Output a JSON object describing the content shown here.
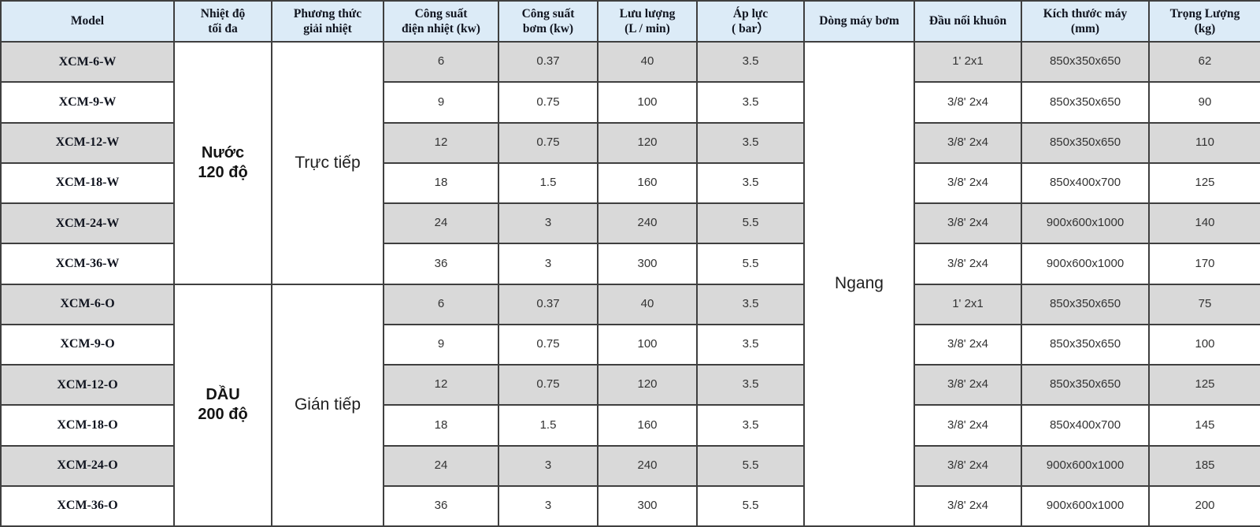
{
  "colors": {
    "header_bg": "#DCEBF7",
    "row_shade": "#D9D9D9",
    "border": "#3F3F3F"
  },
  "table": {
    "headers": [
      "Model",
      "Nhiệt độ\ntối đa",
      "Phương thức\ngiải nhiệt",
      "Công suất\nđiện nhiệt (kw)",
      "Công suất\nbơm (kw)",
      "Lưu lượng\n(L / min)",
      "Áp lực\n( bar）",
      "Dòng máy bơm",
      "Đầu nối khuôn",
      "Kích thước máy\n(mm)",
      "Trọng Lượng\n(kg)"
    ],
    "merged": {
      "temp_water": "Nước\n120 độ",
      "method_water": "Trực tiếp",
      "temp_oil": "DẦU\n200 độ",
      "method_oil": "Gián tiếp",
      "pump_type": "Ngang"
    },
    "rows": [
      {
        "model": "XCM-6-W",
        "heat_kw": "6",
        "pump_kw": "0.37",
        "flow": "40",
        "pressure": "3.5",
        "mold_connector": "1' 2x1",
        "size": "850x350x650",
        "weight": "62"
      },
      {
        "model": "XCM-9-W",
        "heat_kw": "9",
        "pump_kw": "0.75",
        "flow": "100",
        "pressure": "3.5",
        "mold_connector": "3/8' 2x4",
        "size": "850x350x650",
        "weight": "90"
      },
      {
        "model": "XCM-12-W",
        "heat_kw": "12",
        "pump_kw": "0.75",
        "flow": "120",
        "pressure": "3.5",
        "mold_connector": "3/8' 2x4",
        "size": "850x350x650",
        "weight": "110"
      },
      {
        "model": "XCM-18-W",
        "heat_kw": "18",
        "pump_kw": "1.5",
        "flow": "160",
        "pressure": "3.5",
        "mold_connector": "3/8' 2x4",
        "size": "850x400x700",
        "weight": "125"
      },
      {
        "model": "XCM-24-W",
        "heat_kw": "24",
        "pump_kw": "3",
        "flow": "240",
        "pressure": "5.5",
        "mold_connector": "3/8' 2x4",
        "size": "900x600x1000",
        "weight": "140"
      },
      {
        "model": "XCM-36-W",
        "heat_kw": "36",
        "pump_kw": "3",
        "flow": "300",
        "pressure": "5.5",
        "mold_connector": "3/8' 2x4",
        "size": "900x600x1000",
        "weight": "170"
      },
      {
        "model": "XCM-6-O",
        "heat_kw": "6",
        "pump_kw": "0.37",
        "flow": "40",
        "pressure": "3.5",
        "mold_connector": "1' 2x1",
        "size": "850x350x650",
        "weight": "75"
      },
      {
        "model": "XCM-9-O",
        "heat_kw": "9",
        "pump_kw": "0.75",
        "flow": "100",
        "pressure": "3.5",
        "mold_connector": "3/8' 2x4",
        "size": "850x350x650",
        "weight": "100"
      },
      {
        "model": "XCM-12-O",
        "heat_kw": "12",
        "pump_kw": "0.75",
        "flow": "120",
        "pressure": "3.5",
        "mold_connector": "3/8' 2x4",
        "size": "850x350x650",
        "weight": "125"
      },
      {
        "model": "XCM-18-O",
        "heat_kw": "18",
        "pump_kw": "1.5",
        "flow": "160",
        "pressure": "3.5",
        "mold_connector": "3/8' 2x4",
        "size": "850x400x700",
        "weight": "145"
      },
      {
        "model": "XCM-24-O",
        "heat_kw": "24",
        "pump_kw": "3",
        "flow": "240",
        "pressure": "5.5",
        "mold_connector": "3/8' 2x4",
        "size": "900x600x1000",
        "weight": "185"
      },
      {
        "model": "XCM-36-O",
        "heat_kw": "36",
        "pump_kw": "3",
        "flow": "300",
        "pressure": "5.5",
        "mold_connector": "3/8' 2x4",
        "size": "900x600x1000",
        "weight": "200"
      }
    ]
  }
}
